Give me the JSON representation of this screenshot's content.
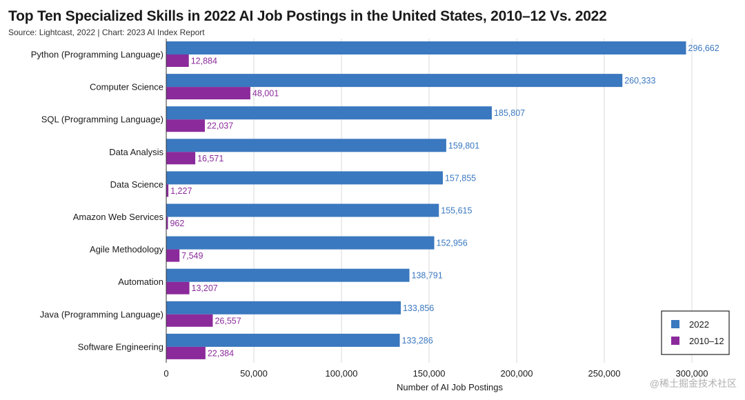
{
  "title": "Top Ten Specialized Skills in 2022 AI Job Postings in the United States, 2010–12 Vs. 2022",
  "subtitle": "Source: Lightcast, 2022 | Chart: 2023 AI Index Report",
  "watermark": "@稀土掘金技术社区",
  "chart_data": {
    "type": "bar",
    "orientation": "horizontal",
    "title": "Top Ten Specialized Skills in 2022 AI Job Postings in the United States, 2010–12 Vs. 2022",
    "xlabel": "Number of AI Job Postings",
    "ylabel": "",
    "xlim": [
      0,
      300000
    ],
    "xticks": [
      0,
      50000,
      100000,
      150000,
      200000,
      250000,
      300000
    ],
    "xtick_labels": [
      "0",
      "50,000",
      "100,000",
      "150,000",
      "200,000",
      "250,000",
      "300,000"
    ],
    "grid": true,
    "legend_position": "bottom-right",
    "categories": [
      "Python (Programming Language)",
      "Computer Science",
      "SQL (Programming Language)",
      "Data Analysis",
      "Data Science",
      "Amazon Web Services",
      "Agile Methodology",
      "Automation",
      "Java (Programming Language)",
      "Software Engineering"
    ],
    "series": [
      {
        "name": "2022",
        "color": "#3a78bf",
        "values": [
          296662,
          260333,
          185807,
          159801,
          157855,
          155615,
          152956,
          138791,
          133856,
          133286
        ],
        "labels": [
          "296,662",
          "260,333",
          "185,807",
          "159,801",
          "157,855",
          "155,615",
          "152,956",
          "138,791",
          "133,856",
          "133,286"
        ]
      },
      {
        "name": "2010–12",
        "color": "#8b2a9b",
        "values": [
          12884,
          48001,
          22037,
          16571,
          1227,
          962,
          7549,
          13207,
          26557,
          22384
        ],
        "labels": [
          "12,884",
          "48,001",
          "22,037",
          "16,571",
          "1,227",
          "962",
          "7,549",
          "13,207",
          "26,557",
          "22,384"
        ]
      }
    ]
  }
}
